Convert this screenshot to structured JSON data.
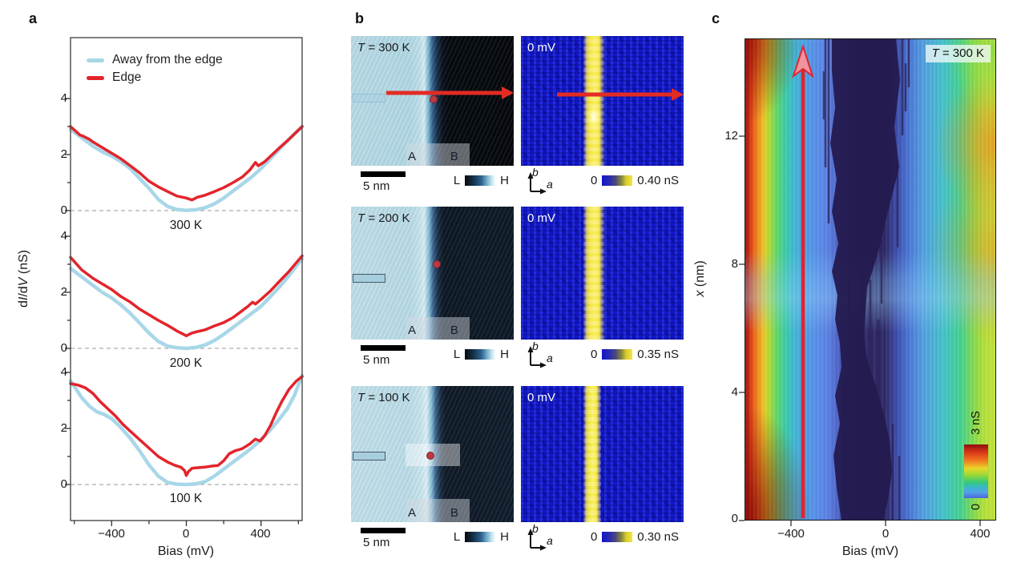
{
  "panel_a": {
    "label": "a",
    "legend": [
      {
        "label": "Away from the edge",
        "color": "#a8d7e8"
      },
      {
        "label": "Edge",
        "color": "#e3242b"
      }
    ],
    "ylabel": {
      "d1": "d",
      "I": "I",
      "d2": "/d",
      "V": "V",
      "units": " (nS)"
    },
    "xlabel": "Bias (mV)",
    "x_tick_labels": [
      "−400",
      "0",
      "400"
    ],
    "y_tick_labels": [
      "4",
      "2",
      "0"
    ],
    "sections": [
      {
        "temp_label": "300 K"
      },
      {
        "temp_label": "200 K"
      },
      {
        "temp_label": "100 K"
      }
    ]
  },
  "panel_b": {
    "label": "b",
    "rows": [
      {
        "temp_prefix": "T",
        "temp_rest": " = 300 K",
        "map_label": "0 mV",
        "region_a": "A",
        "region_b": "B",
        "scalebar": "5 nm",
        "topo_low": "L",
        "topo_high": "H",
        "cond_min": "0",
        "cond_max": "0.40 nS",
        "axis_b": "b",
        "axis_a": "a"
      },
      {
        "temp_prefix": "T",
        "temp_rest": " = 200 K",
        "map_label": "0 mV",
        "region_a": "A",
        "region_b": "B",
        "scalebar": "5 nm",
        "topo_low": "L",
        "topo_high": "H",
        "cond_min": "0",
        "cond_max": "0.35 nS",
        "axis_b": "b",
        "axis_a": "a"
      },
      {
        "temp_prefix": "T",
        "temp_rest": " = 100 K",
        "map_label": "0 mV",
        "region_a": "A",
        "region_b": "B",
        "scalebar": "5 nm",
        "topo_low": "L",
        "topo_high": "H",
        "cond_min": "0",
        "cond_max": "0.30 nS",
        "axis_b": "b",
        "axis_a": "a"
      }
    ]
  },
  "panel_c": {
    "label": "c",
    "temp_prefix": "T",
    "temp_rest": " = 300 K",
    "ylabel": {
      "x": "x",
      "units": " (nm)"
    },
    "xlabel": "Bias (mV)",
    "x_tick_labels": [
      "−400",
      "0",
      "400"
    ],
    "y_tick_labels": [
      "12",
      "8",
      "4",
      "0"
    ],
    "colorbar": {
      "max": "3 nS",
      "min": "0"
    }
  },
  "chart_data": [
    {
      "type": "line",
      "title": "dI/dV spectra at the edge and away from the edge",
      "xlabel": "Bias (mV)",
      "ylabel": "dI/dV (nS)",
      "xlim": [
        -620,
        620
      ],
      "x_ticks": [
        -400,
        0,
        400
      ],
      "y_ticks_per_section": [
        0,
        2,
        4
      ],
      "grid": "dashed zero line per section",
      "legend_position": "top-left inside",
      "sections": [
        {
          "temp": "300 K",
          "series": [
            {
              "name": "Away from the edge",
              "color": "#a8d7e8",
              "width": 4.5,
              "points": [
                [
                  -620,
                  2.9
                ],
                [
                  -550,
                  2.55
                ],
                [
                  -500,
                  2.3
                ],
                [
                  -450,
                  2.1
                ],
                [
                  -400,
                  1.95
                ],
                [
                  -350,
                  1.75
                ],
                [
                  -300,
                  1.5
                ],
                [
                  -250,
                  1.15
                ],
                [
                  -200,
                  0.8
                ],
                [
                  -150,
                  0.4
                ],
                [
                  -100,
                  0.15
                ],
                [
                  -50,
                  0.04
                ],
                [
                  0,
                  0.01
                ],
                [
                  50,
                  0.03
                ],
                [
                  100,
                  0.1
                ],
                [
                  150,
                  0.24
                ],
                [
                  200,
                  0.45
                ],
                [
                  250,
                  0.7
                ],
                [
                  300,
                  0.95
                ],
                [
                  350,
                  1.2
                ],
                [
                  400,
                  1.5
                ],
                [
                  450,
                  1.85
                ],
                [
                  500,
                  2.2
                ],
                [
                  550,
                  2.55
                ],
                [
                  620,
                  3.0
                ]
              ]
            },
            {
              "name": "Edge",
              "color": "#e3242b",
              "width": 3.5,
              "points": [
                [
                  -620,
                  3.0
                ],
                [
                  -570,
                  2.7
                ],
                [
                  -550,
                  2.65
                ],
                [
                  -520,
                  2.55
                ],
                [
                  -500,
                  2.45
                ],
                [
                  -450,
                  2.25
                ],
                [
                  -400,
                  2.05
                ],
                [
                  -350,
                  1.85
                ],
                [
                  -300,
                  1.6
                ],
                [
                  -250,
                  1.35
                ],
                [
                  -200,
                  1.05
                ],
                [
                  -150,
                  0.85
                ],
                [
                  -100,
                  0.68
                ],
                [
                  -50,
                  0.52
                ],
                [
                  0,
                  0.45
                ],
                [
                  30,
                  0.38
                ],
                [
                  60,
                  0.48
                ],
                [
                  100,
                  0.55
                ],
                [
                  150,
                  0.68
                ],
                [
                  200,
                  0.82
                ],
                [
                  250,
                  1.0
                ],
                [
                  300,
                  1.2
                ],
                [
                  340,
                  1.45
                ],
                [
                  370,
                  1.72
                ],
                [
                  385,
                  1.6
                ],
                [
                  420,
                  1.75
                ],
                [
                  460,
                  2.0
                ],
                [
                  500,
                  2.25
                ],
                [
                  550,
                  2.55
                ],
                [
                  620,
                  3.0
                ]
              ]
            }
          ]
        },
        {
          "temp": "200 K",
          "series": [
            {
              "name": "Away from the edge",
              "color": "#a8d7e8",
              "width": 4.5,
              "points": [
                [
                  -620,
                  2.85
                ],
                [
                  -550,
                  2.5
                ],
                [
                  -500,
                  2.25
                ],
                [
                  -450,
                  2.0
                ],
                [
                  -400,
                  1.8
                ],
                [
                  -350,
                  1.55
                ],
                [
                  -300,
                  1.25
                ],
                [
                  -250,
                  0.9
                ],
                [
                  -200,
                  0.55
                ],
                [
                  -150,
                  0.25
                ],
                [
                  -100,
                  0.08
                ],
                [
                  -50,
                  0.02
                ],
                [
                  0,
                  0.0
                ],
                [
                  50,
                  0.03
                ],
                [
                  100,
                  0.12
                ],
                [
                  150,
                  0.28
                ],
                [
                  200,
                  0.5
                ],
                [
                  250,
                  0.75
                ],
                [
                  300,
                  1.0
                ],
                [
                  350,
                  1.25
                ],
                [
                  400,
                  1.5
                ],
                [
                  450,
                  1.85
                ],
                [
                  500,
                  2.2
                ],
                [
                  550,
                  2.6
                ],
                [
                  620,
                  3.2
                ]
              ]
            },
            {
              "name": "Edge",
              "color": "#e3242b",
              "width": 3.5,
              "points": [
                [
                  -620,
                  3.25
                ],
                [
                  -560,
                  2.8
                ],
                [
                  -500,
                  2.5
                ],
                [
                  -450,
                  2.3
                ],
                [
                  -400,
                  2.1
                ],
                [
                  -350,
                  1.85
                ],
                [
                  -300,
                  1.65
                ],
                [
                  -250,
                  1.4
                ],
                [
                  -200,
                  1.2
                ],
                [
                  -150,
                  1.0
                ],
                [
                  -100,
                  0.82
                ],
                [
                  -50,
                  0.62
                ],
                [
                  -20,
                  0.52
                ],
                [
                  0,
                  0.45
                ],
                [
                  30,
                  0.55
                ],
                [
                  60,
                  0.6
                ],
                [
                  100,
                  0.66
                ],
                [
                  150,
                  0.8
                ],
                [
                  200,
                  0.92
                ],
                [
                  250,
                  1.1
                ],
                [
                  300,
                  1.35
                ],
                [
                  330,
                  1.5
                ],
                [
                  355,
                  1.65
                ],
                [
                  370,
                  1.58
                ],
                [
                  400,
                  1.75
                ],
                [
                  450,
                  2.05
                ],
                [
                  500,
                  2.4
                ],
                [
                  550,
                  2.75
                ],
                [
                  620,
                  3.3
                ]
              ]
            }
          ]
        },
        {
          "temp": "100 K",
          "series": [
            {
              "name": "Away from the edge",
              "color": "#a8d7e8",
              "width": 4.5,
              "points": [
                [
                  -620,
                  3.7
                ],
                [
                  -560,
                  3.1
                ],
                [
                  -520,
                  2.8
                ],
                [
                  -480,
                  2.6
                ],
                [
                  -440,
                  2.5
                ],
                [
                  -400,
                  2.35
                ],
                [
                  -360,
                  2.1
                ],
                [
                  -300,
                  1.65
                ],
                [
                  -250,
                  1.2
                ],
                [
                  -200,
                  0.7
                ],
                [
                  -150,
                  0.3
                ],
                [
                  -100,
                  0.07
                ],
                [
                  -50,
                  0.01
                ],
                [
                  0,
                  0.0
                ],
                [
                  50,
                  0.02
                ],
                [
                  100,
                  0.1
                ],
                [
                  150,
                  0.3
                ],
                [
                  200,
                  0.55
                ],
                [
                  250,
                  0.8
                ],
                [
                  300,
                  1.05
                ],
                [
                  350,
                  1.3
                ],
                [
                  400,
                  1.6
                ],
                [
                  450,
                  1.95
                ],
                [
                  500,
                  2.35
                ],
                [
                  540,
                  2.7
                ],
                [
                  580,
                  3.2
                ],
                [
                  620,
                  3.9
                ]
              ]
            },
            {
              "name": "Edge",
              "color": "#e3242b",
              "width": 3.5,
              "points": [
                [
                  -620,
                  3.6
                ],
                [
                  -580,
                  3.55
                ],
                [
                  -540,
                  3.45
                ],
                [
                  -500,
                  3.25
                ],
                [
                  -460,
                  2.95
                ],
                [
                  -420,
                  2.7
                ],
                [
                  -380,
                  2.45
                ],
                [
                  -340,
                  2.15
                ],
                [
                  -300,
                  1.9
                ],
                [
                  -250,
                  1.6
                ],
                [
                  -200,
                  1.3
                ],
                [
                  -150,
                  1.0
                ],
                [
                  -100,
                  0.8
                ],
                [
                  -60,
                  0.68
                ],
                [
                  -30,
                  0.62
                ],
                [
                  -10,
                  0.5
                ],
                [
                  0,
                  0.32
                ],
                [
                  10,
                  0.45
                ],
                [
                  30,
                  0.58
                ],
                [
                  60,
                  0.6
                ],
                [
                  100,
                  0.62
                ],
                [
                  140,
                  0.66
                ],
                [
                  170,
                  0.68
                ],
                [
                  200,
                  0.85
                ],
                [
                  230,
                  1.1
                ],
                [
                  260,
                  1.2
                ],
                [
                  300,
                  1.28
                ],
                [
                  340,
                  1.45
                ],
                [
                  370,
                  1.62
                ],
                [
                  395,
                  1.55
                ],
                [
                  420,
                  1.75
                ],
                [
                  450,
                  2.1
                ],
                [
                  480,
                  2.55
                ],
                [
                  510,
                  2.95
                ],
                [
                  550,
                  3.4
                ],
                [
                  590,
                  3.7
                ],
                [
                  620,
                  3.85
                ]
              ]
            }
          ]
        }
      ]
    },
    {
      "type": "heatmap",
      "title": "dI/dV(x, V) line cut across the edge at 300 K",
      "xlabel": "Bias (mV)",
      "ylabel": "x (nm)",
      "xlim": [
        -600,
        470
      ],
      "ylim": [
        0,
        15
      ],
      "x_ticks": [
        -400,
        0,
        400
      ],
      "y_ticks": [
        0,
        4,
        8,
        12
      ],
      "colorbar": {
        "min": 0,
        "max": 3,
        "unit": "nS",
        "position": "inside bottom-right"
      },
      "annotations": [
        {
          "text": "T = 300 K",
          "position": "top-right"
        }
      ],
      "features": [
        "high conductance (red/orange) at large negative bias along the left edge",
        "dark near-zero-conductance band around zero bias (≈ −250 to +50 mV)",
        "dark band narrows near x ≈ 6–8 nm where the cut crosses the A/B edge",
        "vertical red arrow marks the spatial trajectory at bias ≈ −350 mV"
      ]
    }
  ]
}
